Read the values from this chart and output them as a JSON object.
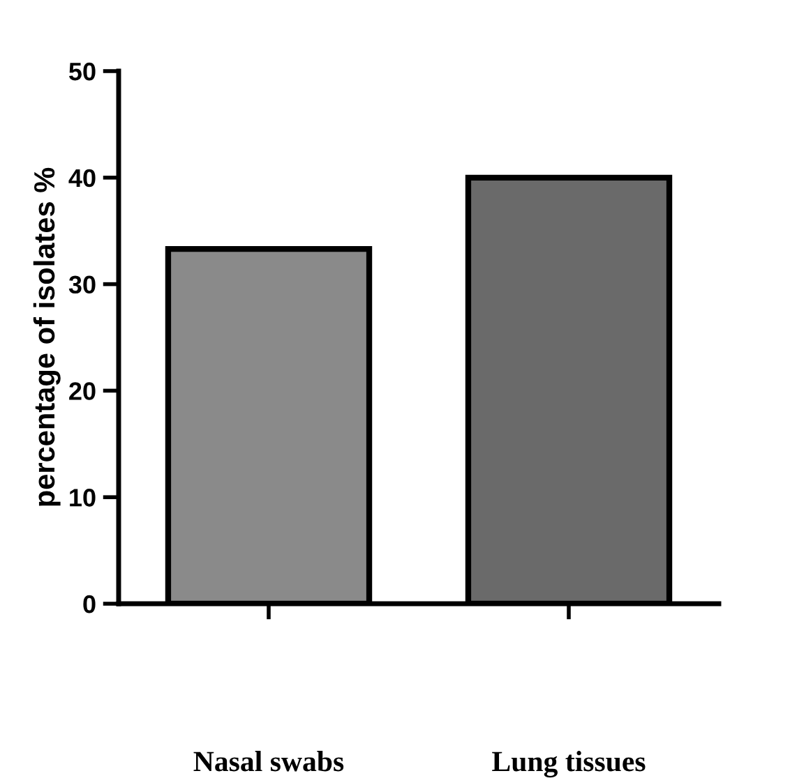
{
  "chart_data": {
    "type": "bar",
    "ylabel": "percentage of isolates %",
    "categories": [
      "Nasal swabs",
      "Lung tissues"
    ],
    "values": [
      33.3,
      40
    ],
    "colors": [
      "#8a8a8a",
      "#6a6a6a"
    ],
    "ylim": [
      0,
      50
    ],
    "yticks": [
      0,
      10,
      20,
      30,
      40,
      50
    ],
    "grid": false,
    "legend": false
  }
}
